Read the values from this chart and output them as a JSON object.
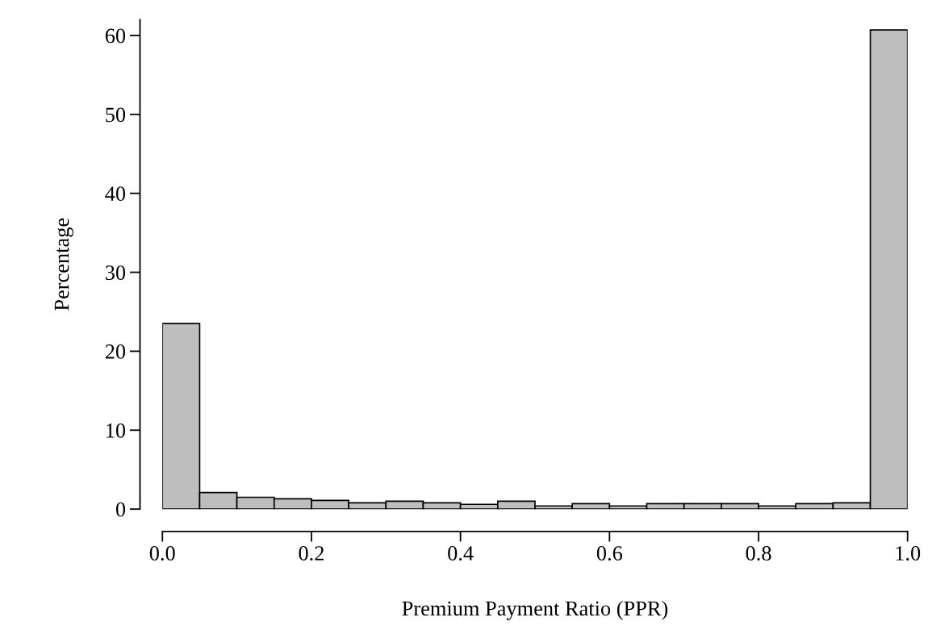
{
  "chart_data": {
    "type": "histogram",
    "xlabel": "Premium Payment Ratio (PPR)",
    "ylabel": "Percentage",
    "color": "#bebebe",
    "bins": [
      0.0,
      0.05,
      0.1,
      0.15,
      0.2,
      0.25,
      0.3,
      0.35,
      0.4,
      0.45,
      0.5,
      0.55,
      0.6,
      0.65,
      0.7,
      0.75,
      0.8,
      0.85,
      0.9,
      0.95,
      1.0
    ],
    "values": [
      23.5,
      2.1,
      1.5,
      1.3,
      1.1,
      0.8,
      1.0,
      0.8,
      0.6,
      1.0,
      0.4,
      0.7,
      0.4,
      0.7,
      0.7,
      0.7,
      0.4,
      0.7,
      0.8,
      60.7
    ],
    "xlim": [
      0.0,
      1.0
    ],
    "ylim": [
      0,
      62
    ],
    "xticks": [
      {
        "value": 0.0,
        "label": "0.0"
      },
      {
        "value": 0.2,
        "label": "0.2"
      },
      {
        "value": 0.4,
        "label": "0.4"
      },
      {
        "value": 0.6,
        "label": "0.6"
      },
      {
        "value": 0.8,
        "label": "0.8"
      },
      {
        "value": 1.0,
        "label": "1.0"
      }
    ],
    "yticks": [
      0,
      10,
      20,
      30,
      40,
      50,
      60
    ],
    "grid": false
  }
}
